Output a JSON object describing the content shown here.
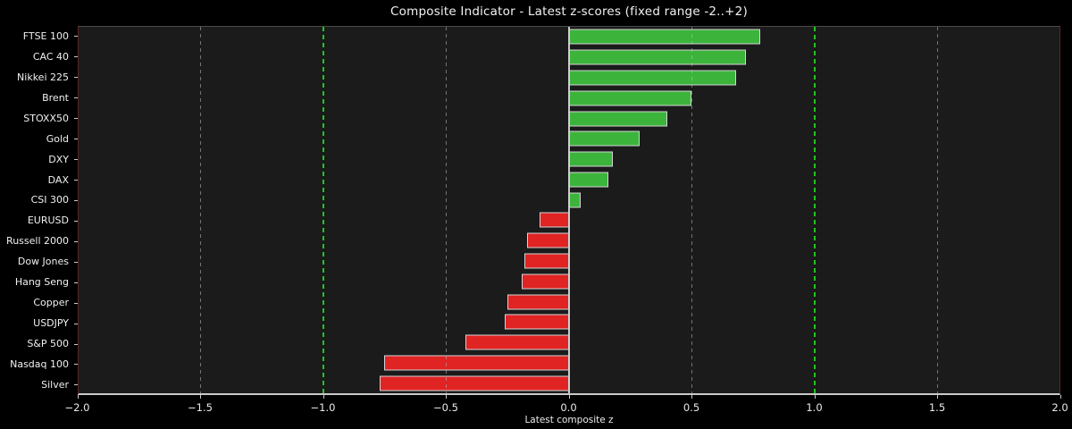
{
  "chart_data": {
    "type": "bar",
    "orientation": "horizontal",
    "title": "Composite Indicator - Latest z-scores (fixed range -2..+2)",
    "xlabel": "Latest composite z",
    "xlim": [
      -2.0,
      2.0
    ],
    "xticks": [
      -2.0,
      -1.5,
      -1.0,
      -0.5,
      0.0,
      0.5,
      1.0,
      1.5,
      2.0
    ],
    "xtick_labels": [
      "−2.0",
      "−1.5",
      "−1.0",
      "−0.5",
      "0.0",
      "0.5",
      "1.0",
      "1.5",
      "2.0"
    ],
    "categories": [
      "FTSE 100",
      "CAC 40",
      "Nikkei 225",
      "Brent",
      "STOXX50",
      "Gold",
      "DXY",
      "DAX",
      "CSI 300",
      "EURUSD",
      "Russell 2000",
      "Dow Jones",
      "Hang Seng",
      "Copper",
      "USDJPY",
      "S&P 500",
      "Nasdaq 100",
      "Silver"
    ],
    "values": [
      0.78,
      0.72,
      0.68,
      0.5,
      0.4,
      0.29,
      0.18,
      0.16,
      0.05,
      -0.12,
      -0.17,
      -0.18,
      -0.19,
      -0.25,
      -0.26,
      -0.42,
      -0.75,
      -0.77
    ],
    "gridlines": [
      -1.5,
      -0.5,
      0.5,
      1.5
    ],
    "reference_lines": [
      {
        "x": -1.0,
        "color": "#22c522",
        "style": "dashed"
      },
      {
        "x": 1.0,
        "color": "#22c522",
        "style": "dashed"
      },
      {
        "x": 0.0,
        "color": "#c9c9c9",
        "style": "solid"
      }
    ],
    "grid": true,
    "legend": "none",
    "colors": {
      "positive_bar": "#3cb43c",
      "negative_bar": "#e02323",
      "bar_edge": "#d4d4d4",
      "grid_line": "#9a9a9a",
      "reference_green": "#22c522",
      "zero_line": "#c9c9c9",
      "plot_background": "#1b1b1b",
      "figure_background": "#000000",
      "text": "#f0f0f0"
    }
  }
}
